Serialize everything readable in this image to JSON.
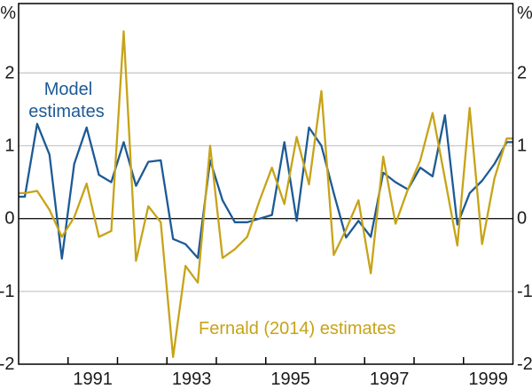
{
  "chart_data": {
    "type": "line",
    "title": "",
    "unit_label": "%",
    "frequency": "quarterly",
    "x_start_year": 1990,
    "x_end_year": 2000,
    "x_tick_years": [
      1991,
      1992,
      1993,
      1994,
      1995,
      1996,
      1997,
      1998,
      1999
    ],
    "x_label_years": [
      1991,
      1993,
      1995,
      1997,
      1999
    ],
    "y_ticks": [
      2,
      1,
      0,
      -1,
      -2
    ],
    "ylim": [
      -2,
      2.95
    ],
    "grid_values": [
      2,
      1,
      -1
    ],
    "legend_position": "annotations-on-plot",
    "series": [
      {
        "name": "Model estimates",
        "color": "#1d5a96",
        "quarters_start": "1990Q1",
        "values": [
          0.3,
          1.3,
          0.88,
          -0.55,
          0.75,
          1.25,
          0.6,
          0.5,
          1.05,
          0.45,
          0.78,
          0.8,
          -0.28,
          -0.35,
          -0.54,
          0.8,
          0.25,
          -0.05,
          -0.05,
          0.0,
          0.05,
          1.05,
          -0.03,
          1.25,
          1.0,
          0.35,
          -0.26,
          -0.03,
          -0.25,
          0.63,
          0.5,
          0.4,
          0.7,
          0.58,
          1.42,
          -0.08,
          0.35,
          0.52,
          0.75,
          1.05
        ]
      },
      {
        "name": "Fernald (2014) estimates",
        "color": "#c7a317",
        "quarters_start": "1990Q1",
        "values": [
          0.35,
          0.38,
          0.12,
          -0.25,
          0.02,
          0.48,
          -0.25,
          -0.17,
          2.57,
          -0.58,
          0.17,
          -0.05,
          -1.9,
          -0.65,
          -0.88,
          1.0,
          -0.54,
          -0.42,
          -0.25,
          0.25,
          0.7,
          0.2,
          1.12,
          0.47,
          1.75,
          -0.5,
          -0.15,
          0.25,
          -0.75,
          0.85,
          -0.07,
          0.4,
          0.8,
          1.45,
          0.55,
          -0.37,
          1.52,
          -0.35,
          0.55,
          1.1
        ]
      }
    ],
    "annotations": [
      {
        "lines": [
          "Model",
          "estimates"
        ],
        "series_ref": "Model estimates",
        "color": "#1d5a96"
      },
      {
        "text": "Fernald (2014) estimates",
        "series_ref": "Fernald (2014) estimates",
        "color": "#c7a317"
      }
    ]
  },
  "colors": {
    "background": "#ffffff",
    "frame": "#000000",
    "gridline": "#c9c9c9",
    "zero_line": "#1a1a1a",
    "tick_text": "#1a1a1a",
    "model_line": "#1d5a96",
    "fernald_line": "#c7a317"
  }
}
